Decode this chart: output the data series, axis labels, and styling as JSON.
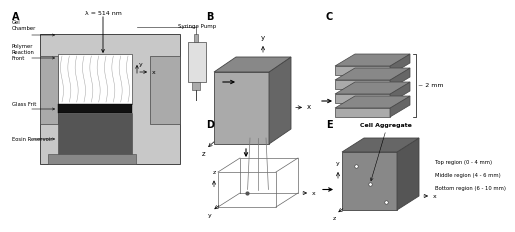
{
  "bg_color": "#ffffff",
  "gray_dark": "#444444",
  "gray_mid": "#888888",
  "gray_light": "#aaaaaa",
  "gray_lighter": "#cccccc",
  "gray_box": "#999999",
  "black": "#000000",
  "white": "#ffffff",
  "lambda_text": "λ = 514 nm",
  "syringe_label": "Syringe Pump",
  "approx_2mm": "~ 2 mm",
  "cell_aggregate": "Cell Aggregate",
  "region_labels": [
    "Top region (0 - 4 mm)",
    "Middle region (4 - 6 mm)",
    "Bottom region (6 - 10 mm)"
  ]
}
